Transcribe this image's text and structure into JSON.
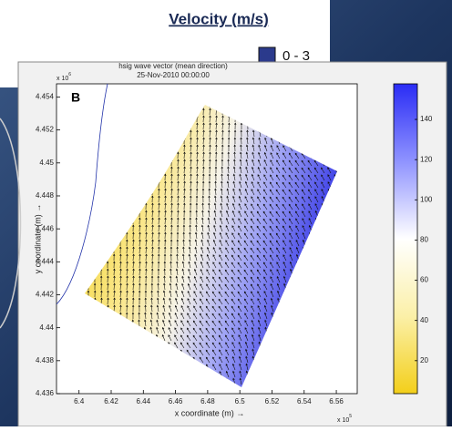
{
  "legend_panel": {
    "title": "Velocity (m/s)",
    "items": [
      "0 - 3"
    ]
  },
  "chart_data": {
    "type": "quiver",
    "title": [
      "hsig wave vector (mean direction)",
      "25-Nov-2010 00:00:00"
    ],
    "panel_label": "B",
    "x_label": "x coordinate (m) →",
    "y_label": "y coordinate (m) →",
    "x_scale": {
      "base": "x 10",
      "exp": "5"
    },
    "y_scale": {
      "base": "x 10",
      "exp": "6"
    },
    "xlim": [
      6.386,
      6.573
    ],
    "xticks": [
      6.4,
      6.42,
      6.44,
      6.46,
      6.48,
      6.5,
      6.52,
      6.54,
      6.56
    ],
    "ylim": [
      4.436,
      4.4548
    ],
    "yticks": [
      4.436,
      4.438,
      4.44,
      4.442,
      4.444,
      4.446,
      4.448,
      4.45,
      4.452,
      4.454
    ],
    "colorbar": {
      "ylim": [
        3.6,
        157.7
      ],
      "yticks": [
        20,
        40,
        60,
        80,
        100,
        120,
        140
      ],
      "colors": [
        "#f3cf1a",
        "#fbf0a8",
        "#ffffff",
        "#8f93ff",
        "#2a2cf5"
      ]
    }
  }
}
